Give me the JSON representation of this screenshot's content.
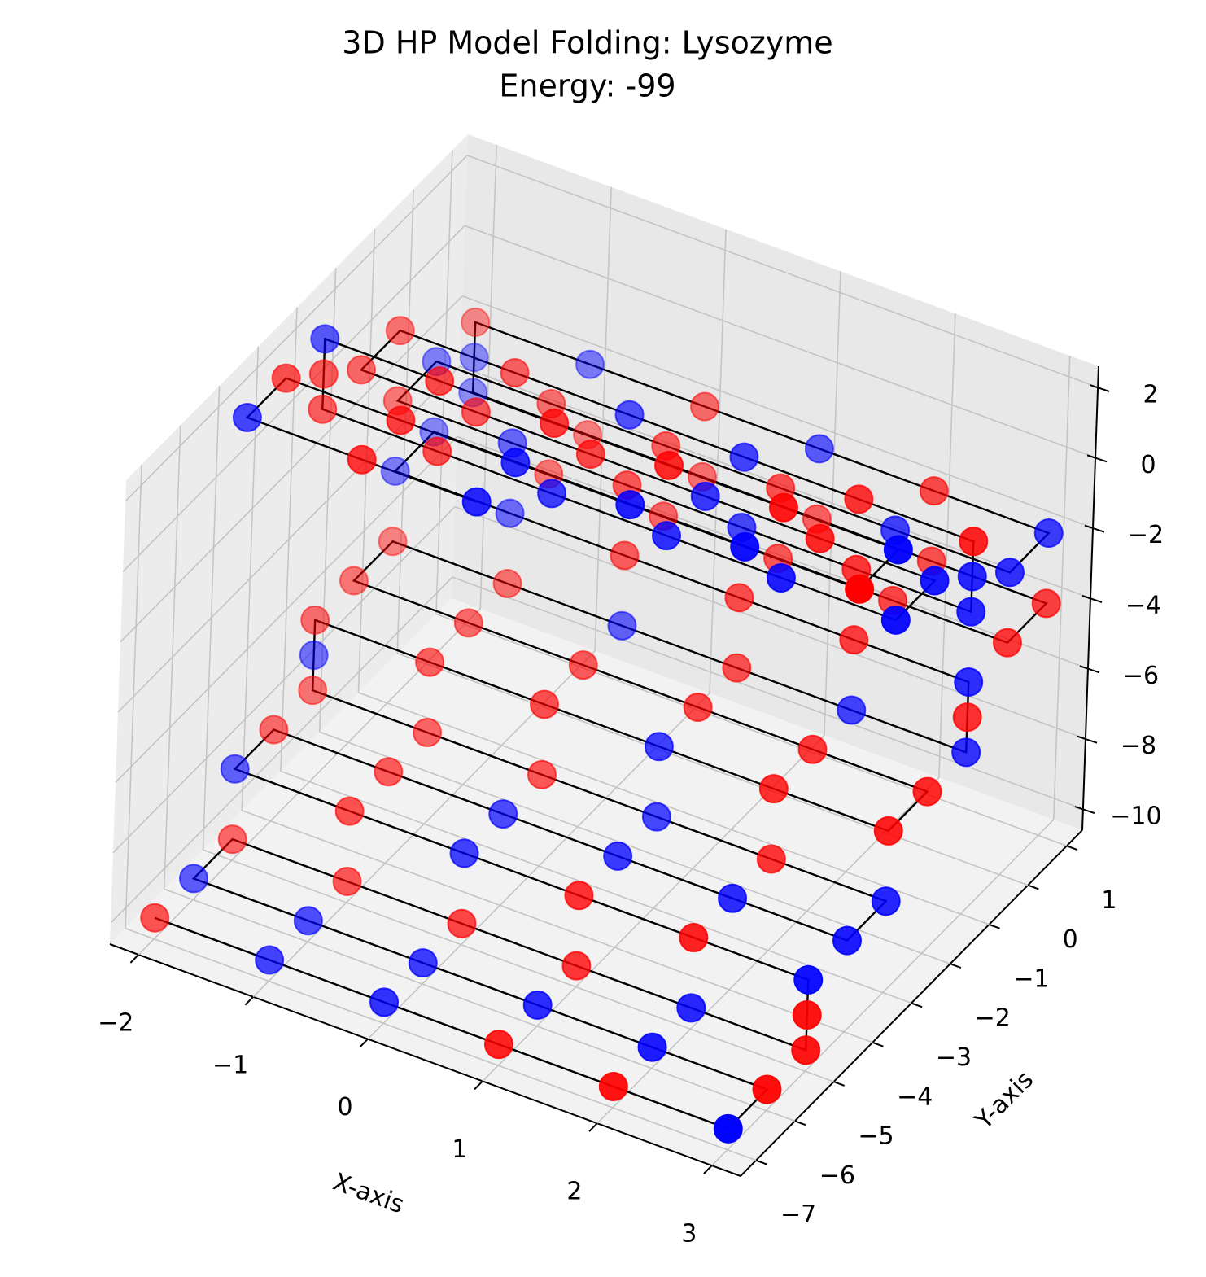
{
  "chart_data": {
    "type": "scatter3d",
    "title": "3D HP Model Folding: Lysozyme",
    "subtitle": "Energy: -99",
    "xlabel": "X-axis",
    "ylabel": "Y-axis",
    "xlim": [
      -2.25,
      3.25
    ],
    "ylim": [
      -7.4,
      1.4
    ],
    "zlim": [
      -10.6,
      2.6
    ],
    "xticks": [
      {
        "value": -2,
        "label": "−2"
      },
      {
        "value": -1,
        "label": "−1"
      },
      0,
      1,
      2,
      3
    ],
    "yticks": [
      {
        "value": -7,
        "label": "−7"
      },
      {
        "value": -6,
        "label": "−6"
      },
      {
        "value": -5,
        "label": "−5"
      },
      {
        "value": -4,
        "label": "−4"
      },
      {
        "value": -3,
        "label": "−3"
      },
      {
        "value": -2,
        "label": "−2"
      },
      {
        "value": -1,
        "label": "−1"
      },
      0,
      1
    ],
    "zticks": [
      {
        "value": -10,
        "label": "−10"
      },
      {
        "value": -8,
        "label": "−8"
      },
      {
        "value": -6,
        "label": "−6"
      },
      {
        "value": -4,
        "label": "−4"
      },
      {
        "value": -2,
        "label": "−2"
      },
      0,
      2
    ],
    "grid": true,
    "line_color": "#000000",
    "x": [
      -2,
      -1,
      0,
      1,
      2,
      3,
      3,
      2,
      1,
      0,
      -1,
      -2,
      -2,
      -1,
      0,
      1,
      2,
      3,
      3,
      3,
      2,
      1,
      0,
      -1,
      -2,
      -2,
      -1,
      0,
      1,
      2,
      3,
      3,
      2,
      1,
      0,
      -1,
      -2,
      -2,
      -2,
      -1,
      0,
      1,
      2,
      3,
      3,
      2,
      1,
      0,
      -1,
      -2,
      -2,
      -1,
      0,
      1,
      2,
      3,
      3,
      3,
      2,
      1,
      0,
      -1,
      -2,
      -2,
      -1,
      0,
      1,
      2,
      3,
      3,
      2,
      1,
      0,
      -1,
      -2,
      -2,
      -2,
      -1,
      0,
      1,
      2,
      3,
      3,
      2,
      1,
      0,
      -1,
      -2,
      -2,
      -1,
      0,
      1,
      2,
      3,
      3,
      3,
      2,
      1,
      0,
      -1,
      -2,
      -2,
      -1,
      0,
      1,
      2,
      3,
      3,
      2,
      1,
      0,
      -1,
      -2,
      -2,
      -2,
      -1,
      0,
      1,
      2,
      3,
      3,
      2,
      1,
      0,
      -1,
      -2,
      -2,
      -1,
      0
    ],
    "y": [
      -7,
      -7,
      -7,
      -7,
      -7,
      -7,
      -6,
      -6,
      -6,
      -6,
      -6,
      -6,
      -5,
      -5,
      -5,
      -5,
      -5,
      -5,
      -5,
      -5,
      -5,
      -5,
      -5,
      -5,
      -5,
      -4,
      -4,
      -4,
      -4,
      -4,
      -4,
      -3,
      -3,
      -3,
      -3,
      -3,
      -3,
      -3,
      -3,
      -3,
      -3,
      -3,
      -3,
      -3,
      -2,
      -2,
      -2,
      -2,
      -2,
      -2,
      -1,
      -1,
      -1,
      -1,
      -1,
      -1,
      -1,
      -1,
      -1,
      -1,
      -1,
      -1,
      -1,
      0,
      0,
      0,
      0,
      0,
      0,
      1,
      1,
      1,
      1,
      1,
      1,
      1,
      1,
      1,
      1,
      1,
      1,
      1,
      0,
      0,
      0,
      0,
      0,
      0,
      -1,
      -1,
      -1,
      -1,
      -1,
      -1,
      -1,
      -1,
      -1,
      -1,
      -1,
      -1,
      -1,
      -2,
      -2,
      -2,
      -2,
      -2,
      -2,
      -3,
      -3,
      -3,
      -3,
      -3,
      -3,
      -3,
      -3,
      -3,
      -3,
      -3,
      -3,
      -3,
      -4,
      -4,
      -4,
      -4,
      -4,
      -4,
      -5,
      -5,
      -5
    ],
    "z": [
      -10,
      -10,
      -10,
      -10,
      -10,
      -10,
      -10,
      -10,
      -10,
      -10,
      -10,
      -10,
      -10,
      -10,
      -10,
      -10,
      -10,
      -10,
      -9,
      -8,
      -8,
      -8,
      -8,
      -8,
      -8,
      -8,
      -8,
      -8,
      -8,
      -8,
      -8,
      -8,
      -8,
      -8,
      -8,
      -8,
      -8,
      -7,
      -6,
      -6,
      -6,
      -6,
      -6,
      -6,
      -6,
      -6,
      -6,
      -6,
      -6,
      -6,
      -6,
      -6,
      -6,
      -6,
      -6,
      -6,
      -5,
      -4,
      -4,
      -4,
      -4,
      -4,
      -4,
      -4,
      -4,
      -4,
      -4,
      -4,
      -4,
      -4,
      -4,
      -4,
      -4,
      -4,
      -4,
      -3,
      -2,
      -2,
      -2,
      -2,
      -2,
      -2,
      -2,
      -2,
      -2,
      -2,
      -2,
      -2,
      -2,
      -2,
      -2,
      -2,
      -2,
      -2,
      -1,
      0,
      0,
      0,
      0,
      0,
      0,
      0,
      0,
      0,
      0,
      0,
      0,
      0,
      0,
      0,
      0,
      0,
      0,
      1,
      2,
      2,
      2,
      2,
      2,
      2,
      2,
      2,
      2,
      2,
      2,
      2,
      2,
      2,
      2
    ],
    "colors": [
      "red",
      "blue",
      "blue",
      "red",
      "red",
      "blue",
      "red",
      "blue",
      "blue",
      "blue",
      "blue",
      "blue",
      "red",
      "red",
      "red",
      "red",
      "blue",
      "red",
      "red",
      "blue",
      "red",
      "red",
      "blue",
      "red",
      "blue",
      "red",
      "red",
      "blue",
      "blue",
      "blue",
      "blue",
      "blue",
      "red",
      "blue",
      "red",
      "red",
      "red",
      "blue",
      "red",
      "red",
      "red",
      "blue",
      "red",
      "red",
      "red",
      "red",
      "red",
      "red",
      "red",
      "red",
      "red",
      "red",
      "blue",
      "red",
      "blue",
      "blue",
      "red",
      "blue",
      "red",
      "red",
      "red",
      "blue",
      "blue",
      "blue",
      "red",
      "red",
      "red",
      "red",
      "red",
      "red",
      "red",
      "red",
      "red",
      "red",
      "blue",
      "blue",
      "red",
      "blue",
      "red",
      "blue",
      "red",
      "blue",
      "blue",
      "blue",
      "red",
      "red",
      "red",
      "blue",
      "red",
      "blue",
      "red",
      "blue",
      "red",
      "blue",
      "blue",
      "red",
      "red",
      "blue",
      "blue",
      "red",
      "red",
      "red",
      "red",
      "red",
      "blue",
      "red",
      "blue",
      "blue",
      "blue",
      "blue",
      "blue",
      "red",
      "red",
      "red",
      "blue",
      "red",
      "red",
      "red",
      "red",
      "blue",
      "red",
      "blue",
      "blue",
      "blue",
      "red",
      "red",
      "blue",
      "red",
      "blue"
    ]
  }
}
